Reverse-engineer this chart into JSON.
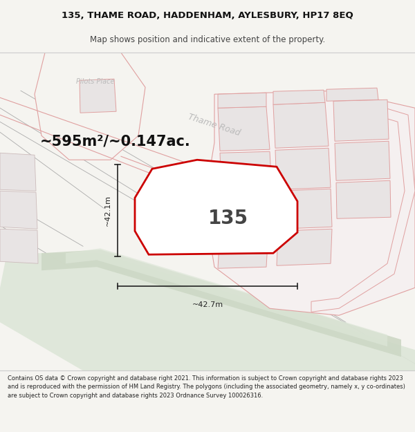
{
  "title_line1": "135, THAME ROAD, HADDENHAM, AYLESBURY, HP17 8EQ",
  "title_line2": "Map shows position and indicative extent of the property.",
  "area_label": "~595m²/~0.147ac.",
  "property_number": "135",
  "dim_vertical": "~42.1m",
  "dim_horizontal": "~42.7m",
  "footer_text": "Contains OS data © Crown copyright and database right 2021. This information is subject to Crown copyright and database rights 2023 and is reproduced with the permission of HM Land Registry. The polygons (including the associated geometry, namely x, y co-ordinates) are subject to Crown copyright and database rights 2023 Ordnance Survey 100026316.",
  "bg_color": "#f5f4f0",
  "map_bg": "#f5f4f0",
  "plot_fill": "#f5f4f0",
  "plot_edge": "#cc0000",
  "green_fill": "#cdd8c5",
  "green_fill2": "#dde6d8",
  "prop_fill": "#e8e4e4",
  "prop_edge": "#e0a0a0",
  "road_edge": "#e0a0a0",
  "gray_line": "#aaaaaa",
  "dim_color": "#222222",
  "text_dark": "#111111",
  "text_gray": "#999999",
  "road_label_color": "#bbbbbb",
  "title_fs": 9.5,
  "subtitle_fs": 8.5,
  "area_fs": 15,
  "num_fs": 20,
  "dim_fs": 8,
  "footer_fs": 6.0
}
